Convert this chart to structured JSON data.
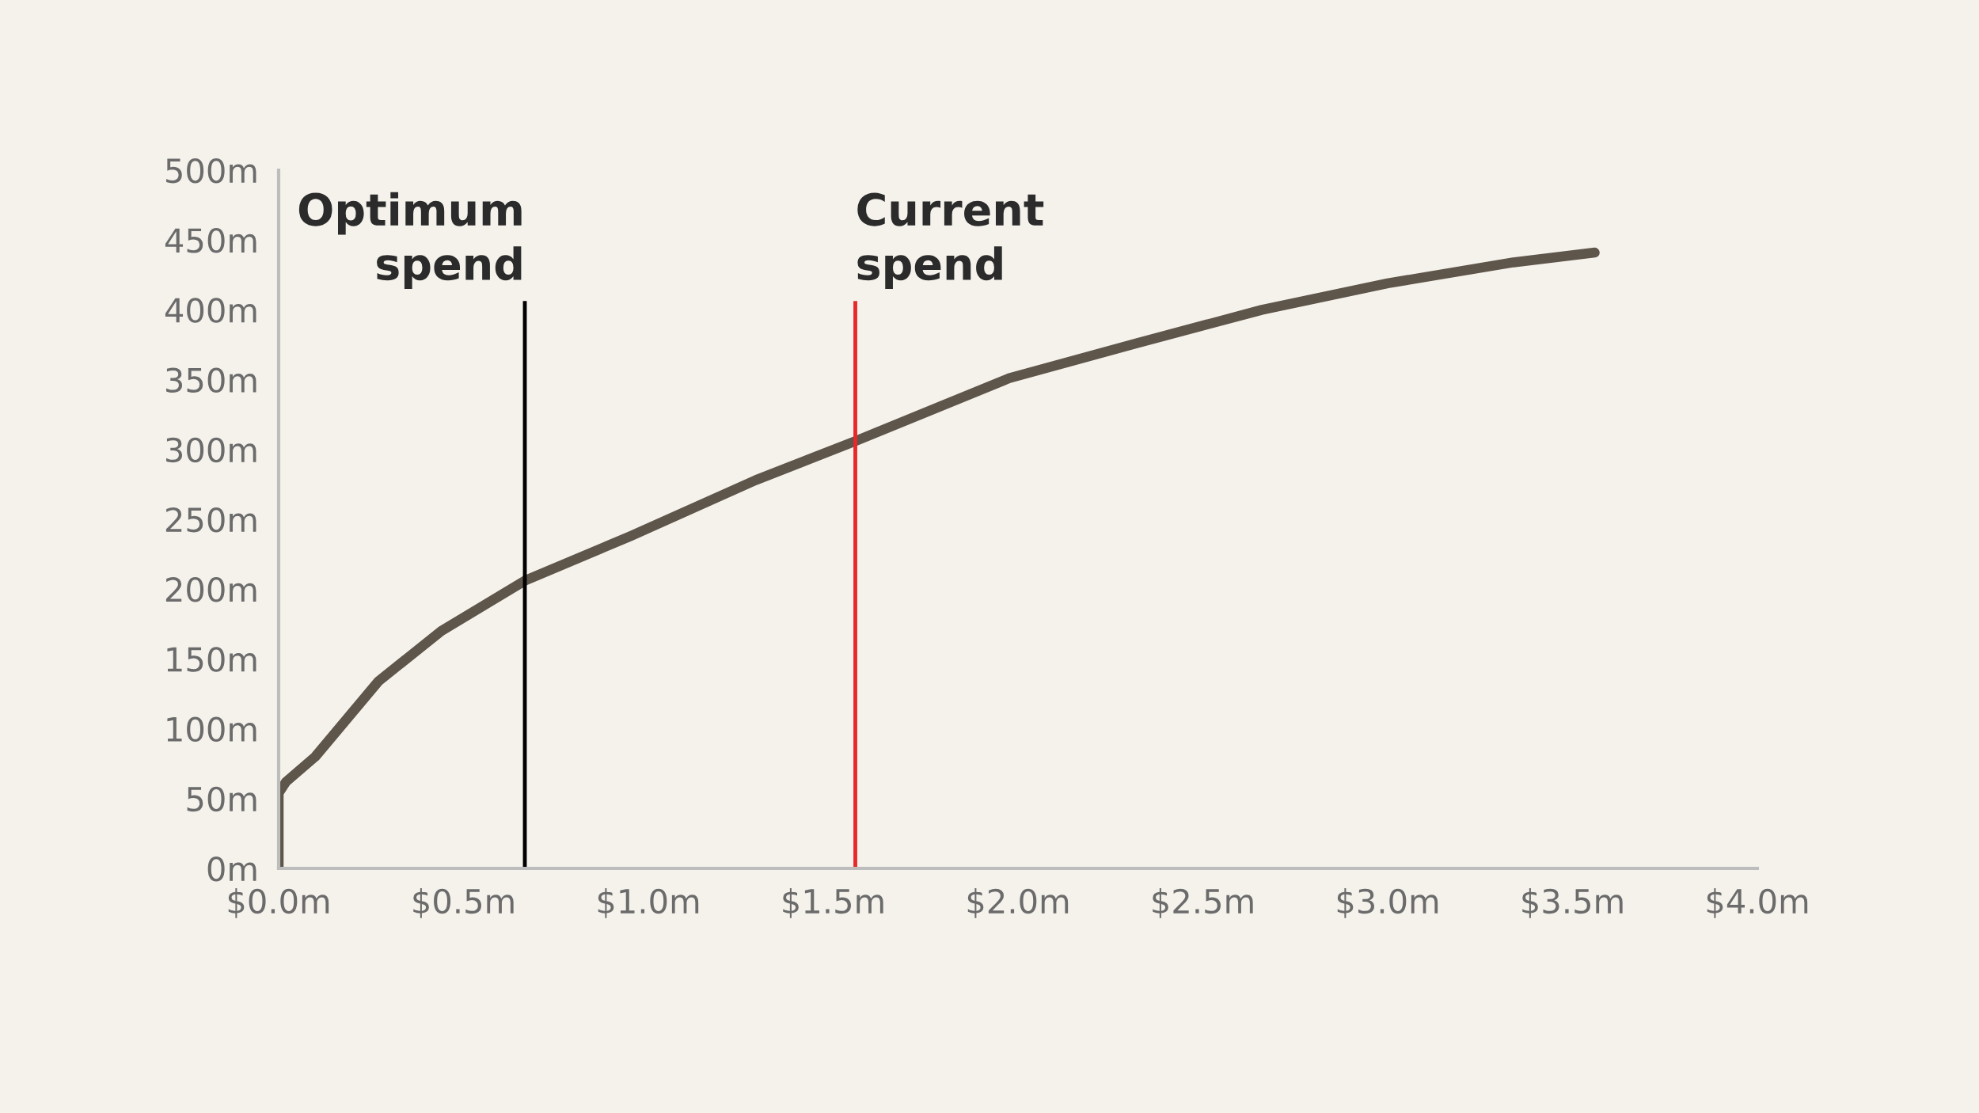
{
  "chart_data": {
    "type": "line",
    "color": "#5e554b",
    "x": [
      0,
      0,
      0.02,
      0.099,
      0.27,
      0.44,
      0.666,
      0.952,
      1.29,
      1.56,
      1.976,
      2.32,
      2.66,
      3.0,
      3.34,
      3.56
    ],
    "values": [
      0,
      54,
      62,
      80,
      134,
      170,
      206,
      238,
      278,
      306,
      351,
      376,
      400,
      419,
      434,
      441
    ],
    "xlim": [
      0,
      4
    ],
    "ylim": [
      0,
      500
    ],
    "xticks": [
      {
        "value": 0,
        "label": "$0.0m"
      },
      {
        "value": 0.5,
        "label": "$0.5m"
      },
      {
        "value": 1,
        "label": "$1.0m"
      },
      {
        "value": 1.5,
        "label": "$1.5m"
      },
      {
        "value": 2,
        "label": "$2.0m"
      },
      {
        "value": 2.5,
        "label": "$2.5m"
      },
      {
        "value": 3,
        "label": "$3.0m"
      },
      {
        "value": 3.5,
        "label": "$3.5m"
      },
      {
        "value": 4,
        "label": "$4.0m"
      }
    ],
    "yticks": [
      {
        "value": 0,
        "label": "0m"
      },
      {
        "value": 50,
        "label": "50m"
      },
      {
        "value": 100,
        "label": "100m"
      },
      {
        "value": 150,
        "label": "150m"
      },
      {
        "value": 200,
        "label": "200m"
      },
      {
        "value": 250,
        "label": "250m"
      },
      {
        "value": 300,
        "label": "300m"
      },
      {
        "value": 350,
        "label": "350m"
      },
      {
        "value": 400,
        "label": "400m"
      },
      {
        "value": 450,
        "label": "450m"
      },
      {
        "value": 500,
        "label": "500m"
      }
    ],
    "ref_lines": [
      {
        "axis": "x",
        "value": 0.666,
        "label": "Optimum\nspend",
        "color": "#000000"
      },
      {
        "axis": "x",
        "value": 1.56,
        "label": "Current\nspend",
        "color": "#e8282b"
      }
    ],
    "grid": false,
    "legend": false
  }
}
